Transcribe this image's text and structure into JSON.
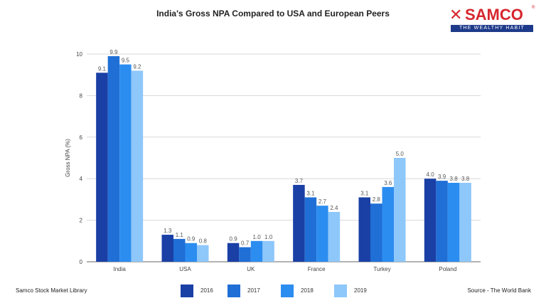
{
  "logo": {
    "mark": "✕",
    "word": "SAMCO",
    "registered": "®",
    "tagline": "THE WEALTHY HABIT"
  },
  "footer": {
    "left": "Samco Stock Market Library",
    "right": "Source - The World Bank"
  },
  "colors": {
    "s2016": "#1a3fa5",
    "s2017": "#1f6fd6",
    "s2018": "#2c8df0",
    "s2019": "#8ec7fa",
    "grid": "#d9d9d9",
    "axis": "#666666",
    "brand_red": "#d6262d",
    "brand_blue": "#1d3a8a"
  },
  "chart_data": {
    "type": "bar",
    "title": "India's Gross NPA Compared to USA and European Peers",
    "xlabel": "",
    "ylabel": "Gross NPA (%)",
    "ylim": [
      0,
      10
    ],
    "yticks": [
      "0",
      "2",
      "4",
      "6",
      "8",
      "10"
    ],
    "grid": true,
    "legend_position": "bottom",
    "categories": [
      "India",
      "USA",
      "UK",
      "France",
      "Turkey",
      "Poland"
    ],
    "series": [
      {
        "name": "2016",
        "values": [
          9.1,
          1.3,
          0.9,
          3.7,
          3.1,
          4.0
        ],
        "labels": [
          "9.1",
          "1.3",
          "0.9",
          "3.7",
          "3.1",
          "4.0"
        ]
      },
      {
        "name": "2017",
        "values": [
          9.9,
          1.1,
          0.7,
          3.1,
          2.8,
          3.9
        ],
        "labels": [
          "9.9",
          "1.1",
          "0.7",
          "3.1",
          "2.8",
          "3.9"
        ]
      },
      {
        "name": "2018",
        "values": [
          9.5,
          0.9,
          1.0,
          2.7,
          3.6,
          3.8
        ],
        "labels": [
          "9.5",
          "0.9",
          "1.0",
          "2.7",
          "3.6",
          "3.8"
        ]
      },
      {
        "name": "2019",
        "values": [
          9.2,
          0.8,
          1.0,
          2.4,
          5.0,
          3.8
        ],
        "labels": [
          "9.2",
          "0.8",
          "1.0",
          "2.4",
          "5.0",
          "3.8"
        ]
      }
    ]
  }
}
